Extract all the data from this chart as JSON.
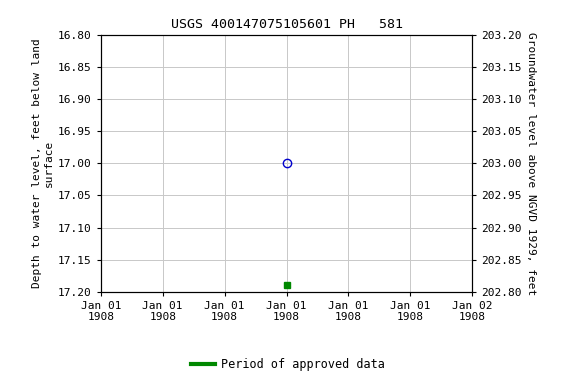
{
  "title": "USGS 400147075105601 PH   581",
  "ylabel_left": "Depth to water level, feet below land\nsurface",
  "ylabel_right": "Groundwater level above NGVD 1929, feet",
  "ylim_left": [
    16.8,
    17.2
  ],
  "ylim_right": [
    202.8,
    203.2
  ],
  "yticks_left": [
    16.8,
    16.85,
    16.9,
    16.95,
    17.0,
    17.05,
    17.1,
    17.15,
    17.2
  ],
  "yticks_right": [
    202.8,
    202.85,
    202.9,
    202.95,
    203.0,
    203.05,
    203.1,
    203.15,
    203.2
  ],
  "ytick_labels_left": [
    "16.80",
    "16.85",
    "16.90",
    "16.95",
    "17.00",
    "17.05",
    "17.10",
    "17.15",
    "17.20"
  ],
  "ytick_labels_right": [
    "203.20",
    "203.15",
    "203.10",
    "203.05",
    "203.00",
    "202.95",
    "202.90",
    "202.85",
    "202.80"
  ],
  "data_point_1": {
    "x": 3,
    "value": 17.0,
    "color": "#0000cc",
    "marker": "o"
  },
  "data_point_2": {
    "x": 3,
    "value": 17.19,
    "color": "#008800",
    "marker": "s"
  },
  "legend_label": "Period of approved data",
  "legend_color": "#008800",
  "background_color": "#ffffff",
  "grid_color": "#c8c8c8",
  "xlim": [
    0,
    6
  ],
  "xtick_positions": [
    0,
    1,
    2,
    3,
    4,
    5,
    6
  ],
  "xtick_labels": [
    "Jan 01\n1908",
    "Jan 01\n1908",
    "Jan 01\n1908",
    "Jan 01\n1908",
    "Jan 01\n1908",
    "Jan 01\n1908",
    "Jan 02\n1908"
  ]
}
